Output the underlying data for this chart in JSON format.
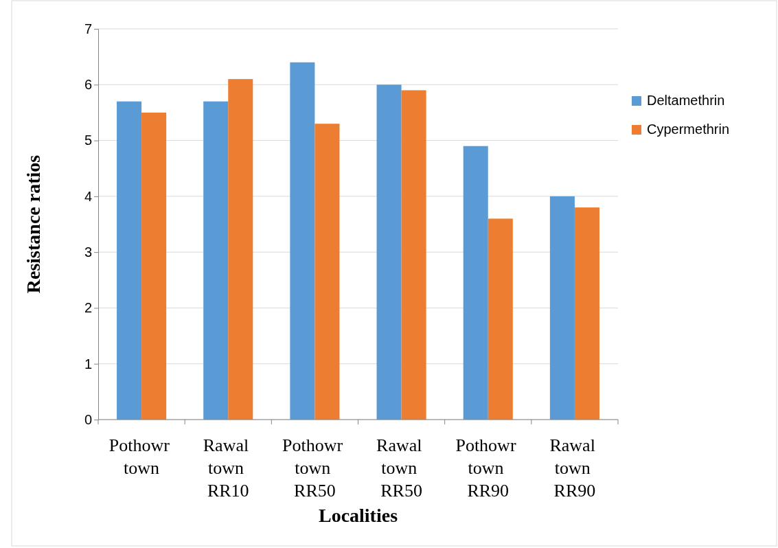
{
  "chart_data": {
    "type": "bar",
    "xlabel": "Localities",
    "ylabel": "Resistance ratios",
    "categories": [
      "Pothowr town",
      "Rawal town RR10",
      "Pothowr town RR50",
      "Rawal town RR50",
      "Pothowr town RR90",
      "Rawal town RR90"
    ],
    "series": [
      {
        "name": "Deltamethrin",
        "color": "#5b9bd5",
        "values": [
          5.7,
          5.7,
          6.4,
          6.0,
          4.9,
          4.0
        ]
      },
      {
        "name": "Cypermethrin",
        "color": "#ed7d31",
        "values": [
          5.5,
          6.1,
          5.3,
          5.9,
          3.6,
          3.8
        ]
      }
    ],
    "ylim": [
      0,
      7
    ],
    "yticks": [
      0,
      1,
      2,
      3,
      4,
      5,
      6,
      7
    ],
    "grid": "y",
    "legend": "right"
  }
}
